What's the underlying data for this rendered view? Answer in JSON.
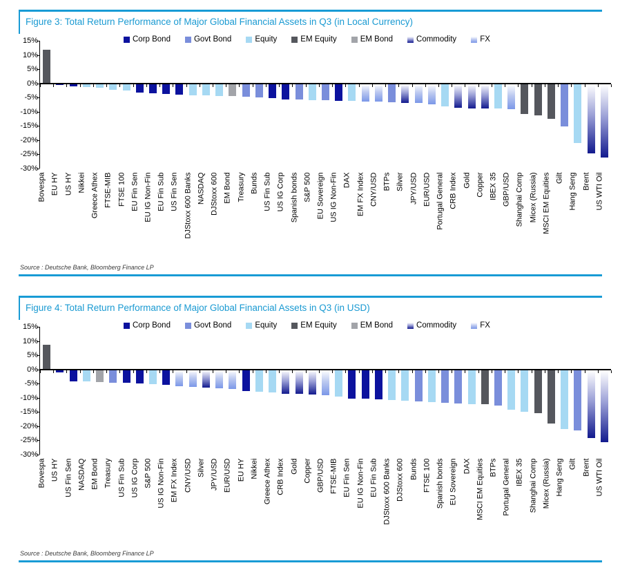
{
  "accent_color": "#189bd5",
  "title_color": "#1a9ad2",
  "axis_color": "#000000",
  "source_color": "#3a3a3a",
  "category_colors": {
    "Corp Bond": "#0c129e",
    "Govt Bond": "#7a8edb",
    "Equity": "#a6d9f3",
    "EM Equity": "#55575d",
    "EM Bond": "#a2a4a9",
    "Commodity": [
      "#ffffff",
      "#9a9fd6",
      "#121a8e"
    ],
    "FX": [
      "#ffffff",
      "#bcc9f0",
      "#7b97e8"
    ]
  },
  "chart_data": [
    {
      "type": "bar",
      "title": "Figure 3: Total Return Performance of Major Global Financial Assets in Q3 (in Local Currency)",
      "source": "Source : Deutsche Bank, Bloomberg Finance LP",
      "ylim": [
        -30,
        15
      ],
      "ytick_step": 5,
      "ytick_labels": [
        "15%",
        "10%",
        "5%",
        "0%",
        "-5%",
        "-10%",
        "-15%",
        "-20%",
        "-25%",
        "-30%"
      ],
      "grid": false,
      "legend_position": "top",
      "legend": [
        "Corp Bond",
        "Govt Bond",
        "Equity",
        "EM Equity",
        "EM Bond",
        "Commodity",
        "FX"
      ],
      "bars": [
        {
          "label": "Bovespa",
          "category": "EM Equity",
          "value": 11.8
        },
        {
          "label": "EU HY",
          "category": "Corp Bond",
          "value": -0.3
        },
        {
          "label": "US HY",
          "category": "Corp Bond",
          "value": -0.8
        },
        {
          "label": "Nikkei",
          "category": "Equity",
          "value": -1.2
        },
        {
          "label": "Greece Athex",
          "category": "Equity",
          "value": -1.4
        },
        {
          "label": "FTSE-MIB",
          "category": "Equity",
          "value": -2.0
        },
        {
          "label": "FTSE 100",
          "category": "Equity",
          "value": -2.4
        },
        {
          "label": "EU Fin Sen",
          "category": "Corp Bond",
          "value": -3.0
        },
        {
          "label": "EU IG Non-Fin",
          "category": "Corp Bond",
          "value": -3.2
        },
        {
          "label": "EU Fin Sub",
          "category": "Corp Bond",
          "value": -3.5
        },
        {
          "label": "US Fin Sen",
          "category": "Corp Bond",
          "value": -3.8
        },
        {
          "label": "DJStoxx 600 Banks",
          "category": "Equity",
          "value": -3.9
        },
        {
          "label": "NASDAQ",
          "category": "Equity",
          "value": -4.0
        },
        {
          "label": "DJStoxx 600",
          "category": "Equity",
          "value": -4.2
        },
        {
          "label": "EM Bond",
          "category": "EM Bond",
          "value": -4.3
        },
        {
          "label": "Treasury",
          "category": "Govt Bond",
          "value": -4.6
        },
        {
          "label": "Bunds",
          "category": "Govt Bond",
          "value": -4.7
        },
        {
          "label": "US Fin Sub",
          "category": "Corp Bond",
          "value": -5.1
        },
        {
          "label": "US IG Corp",
          "category": "Corp Bond",
          "value": -5.5
        },
        {
          "label": "Spanish bonds",
          "category": "Govt Bond",
          "value": -5.5
        },
        {
          "label": "S&P 500",
          "category": "Equity",
          "value": -5.6
        },
        {
          "label": "EU Sovereign",
          "category": "Govt Bond",
          "value": -5.7
        },
        {
          "label": "US IG Non-Fin",
          "category": "Corp Bond",
          "value": -5.9
        },
        {
          "label": "DAX",
          "category": "Equity",
          "value": -6.0
        },
        {
          "label": "EM FX Index",
          "category": "FX",
          "value": -6.2
        },
        {
          "label": "CNY/USD",
          "category": "FX",
          "value": -6.3
        },
        {
          "label": "BTPs",
          "category": "Govt Bond",
          "value": -6.4
        },
        {
          "label": "Silver",
          "category": "Commodity",
          "value": -6.6
        },
        {
          "label": "JPY/USD",
          "category": "FX",
          "value": -6.8
        },
        {
          "label": "EUR/USD",
          "category": "FX",
          "value": -7.3
        },
        {
          "label": "Portugal General",
          "category": "Equity",
          "value": -8.0
        },
        {
          "label": "CRB Index",
          "category": "Commodity",
          "value": -8.4
        },
        {
          "label": "Gold",
          "category": "Commodity",
          "value": -8.6
        },
        {
          "label": "Copper",
          "category": "Commodity",
          "value": -8.7
        },
        {
          "label": "IBEX 35",
          "category": "Equity",
          "value": -8.7
        },
        {
          "label": "GBP/USD",
          "category": "FX",
          "value": -8.9
        },
        {
          "label": "Shanghai Comp",
          "category": "EM Equity",
          "value": -10.6
        },
        {
          "label": "Micex (Russia)",
          "category": "EM Equity",
          "value": -11.1
        },
        {
          "label": "MSCI EM Equities",
          "category": "EM Equity",
          "value": -12.2
        },
        {
          "label": "Gilt",
          "category": "Govt Bond",
          "value": -14.9
        },
        {
          "label": "Hang Seng",
          "category": "Equity",
          "value": -20.8
        },
        {
          "label": "Brent",
          "category": "Commodity",
          "value": -24.4
        },
        {
          "label": "US WTI Oil",
          "category": "Commodity",
          "value": -26.0
        }
      ]
    },
    {
      "type": "bar",
      "title": "Figure 4: Total Return Performance of Major Global Financial Assets in Q3 (in USD)",
      "source": "Source : Deutsche Bank, Bloomberg Finance LP",
      "ylim": [
        -30,
        15
      ],
      "ytick_step": 5,
      "ytick_labels": [
        "15%",
        "10%",
        "5%",
        "0%",
        "-5%",
        "-10%",
        "-15%",
        "-20%",
        "-25%",
        "-30%"
      ],
      "grid": false,
      "legend_position": "top",
      "legend": [
        "Corp Bond",
        "Govt Bond",
        "Equity",
        "EM Equity",
        "EM Bond",
        "Commodity",
        "FX"
      ],
      "bars": [
        {
          "label": "Bovespa",
          "category": "EM Equity",
          "value": 8.7
        },
        {
          "label": "US HY",
          "category": "Corp Bond",
          "value": -0.8
        },
        {
          "label": "US Fin Sen",
          "category": "Corp Bond",
          "value": -3.9
        },
        {
          "label": "NASDAQ",
          "category": "Equity",
          "value": -4.0
        },
        {
          "label": "EM Bond",
          "category": "EM Bond",
          "value": -4.3
        },
        {
          "label": "Treasury",
          "category": "Govt Bond",
          "value": -4.5
        },
        {
          "label": "US Fin Sub",
          "category": "Corp Bond",
          "value": -4.6
        },
        {
          "label": "US IG Corp",
          "category": "Corp Bond",
          "value": -4.8
        },
        {
          "label": "S&P 500",
          "category": "Equity",
          "value": -4.9
        },
        {
          "label": "US IG Non-Fin",
          "category": "Corp Bond",
          "value": -5.2
        },
        {
          "label": "EM FX Index",
          "category": "FX",
          "value": -5.7
        },
        {
          "label": "CNY/USD",
          "category": "FX",
          "value": -5.9
        },
        {
          "label": "Silver",
          "category": "Commodity",
          "value": -6.2
        },
        {
          "label": "JPY/USD",
          "category": "FX",
          "value": -6.4
        },
        {
          "label": "EUR/USD",
          "category": "FX",
          "value": -6.6
        },
        {
          "label": "EU HY",
          "category": "Corp Bond",
          "value": -7.4
        },
        {
          "label": "Nikkei",
          "category": "Equity",
          "value": -7.7
        },
        {
          "label": "Greece Athex",
          "category": "Equity",
          "value": -8.0
        },
        {
          "label": "CRB Index",
          "category": "Commodity",
          "value": -8.3
        },
        {
          "label": "Gold",
          "category": "Commodity",
          "value": -8.5
        },
        {
          "label": "Copper",
          "category": "Commodity",
          "value": -8.6
        },
        {
          "label": "GBP/USD",
          "category": "FX",
          "value": -8.9
        },
        {
          "label": "FTSE-MIB",
          "category": "Equity",
          "value": -9.5
        },
        {
          "label": "EU Fin Sen",
          "category": "Corp Bond",
          "value": -10.0
        },
        {
          "label": "EU IG Non-Fin",
          "category": "Corp Bond",
          "value": -10.2
        },
        {
          "label": "EU Fin Sub",
          "category": "Corp Bond",
          "value": -10.4
        },
        {
          "label": "DJStoxx 600 Banks",
          "category": "Equity",
          "value": -10.6
        },
        {
          "label": "DJStoxx 600",
          "category": "Equity",
          "value": -10.8
        },
        {
          "label": "Bunds",
          "category": "Govt Bond",
          "value": -11.0
        },
        {
          "label": "FTSE 100",
          "category": "Equity",
          "value": -11.4
        },
        {
          "label": "Spanish bonds",
          "category": "Govt Bond",
          "value": -11.6
        },
        {
          "label": "EU Sovereign",
          "category": "Govt Bond",
          "value": -11.8
        },
        {
          "label": "DAX",
          "category": "Equity",
          "value": -12.0
        },
        {
          "label": "MSCI EM Equities",
          "category": "EM Equity",
          "value": -12.1
        },
        {
          "label": "BTPs",
          "category": "Govt Bond",
          "value": -12.6
        },
        {
          "label": "Portugal General",
          "category": "Equity",
          "value": -14.1
        },
        {
          "label": "IBEX 35",
          "category": "Equity",
          "value": -14.7
        },
        {
          "label": "Shanghai Comp",
          "category": "EM Equity",
          "value": -15.2
        },
        {
          "label": "Micex (Russia)",
          "category": "EM Equity",
          "value": -18.8
        },
        {
          "label": "Hang Seng",
          "category": "Equity",
          "value": -20.8
        },
        {
          "label": "Gilt",
          "category": "Govt Bond",
          "value": -21.4
        },
        {
          "label": "Brent",
          "category": "Commodity",
          "value": -23.9
        },
        {
          "label": "US WTI Oil",
          "category": "Commodity",
          "value": -25.5
        }
      ]
    }
  ]
}
